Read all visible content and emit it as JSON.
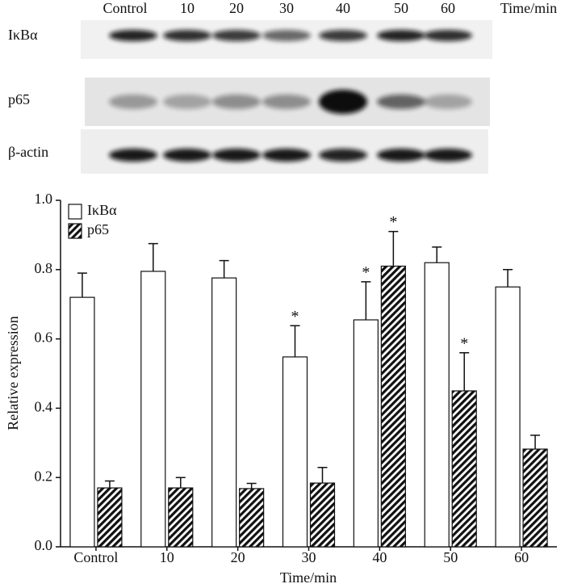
{
  "blot": {
    "lanes": [
      "Control",
      "10",
      "20",
      "30",
      "40",
      "50",
      "60"
    ],
    "time_label": "Time/min",
    "rows": [
      "IκBα",
      "p65",
      "β-actin"
    ]
  },
  "chart_data": {
    "type": "bar",
    "x_label": "Time/min",
    "y_label": "Relative expression",
    "categories": [
      "Control",
      "10",
      "20",
      "30",
      "40",
      "50",
      "60"
    ],
    "series": [
      {
        "name": "IκBα",
        "color": "#ffffff",
        "fill": "solid",
        "values": [
          0.72,
          0.795,
          0.776,
          0.548,
          0.655,
          0.82,
          0.75
        ],
        "errors": [
          0.07,
          0.08,
          0.05,
          0.09,
          0.11,
          0.045,
          0.05
        ],
        "significance": [
          null,
          null,
          null,
          "*",
          "*",
          null,
          null
        ]
      },
      {
        "name": "p65",
        "color": "#000000",
        "fill": "hatch",
        "values": [
          0.17,
          0.17,
          0.168,
          0.184,
          0.81,
          0.45,
          0.282
        ],
        "errors": [
          0.02,
          0.03,
          0.015,
          0.045,
          0.1,
          0.11,
          0.04
        ],
        "significance": [
          null,
          null,
          null,
          null,
          "*",
          "*",
          null
        ]
      }
    ],
    "ylim": [
      0,
      1
    ],
    "yticks": [
      {
        "value": 0,
        "label": "0.0"
      },
      0.2,
      0.4,
      0.6,
      0.8,
      {
        "value": 1,
        "label": "1.0"
      }
    ],
    "legend": "top-left",
    "grid": false
  }
}
